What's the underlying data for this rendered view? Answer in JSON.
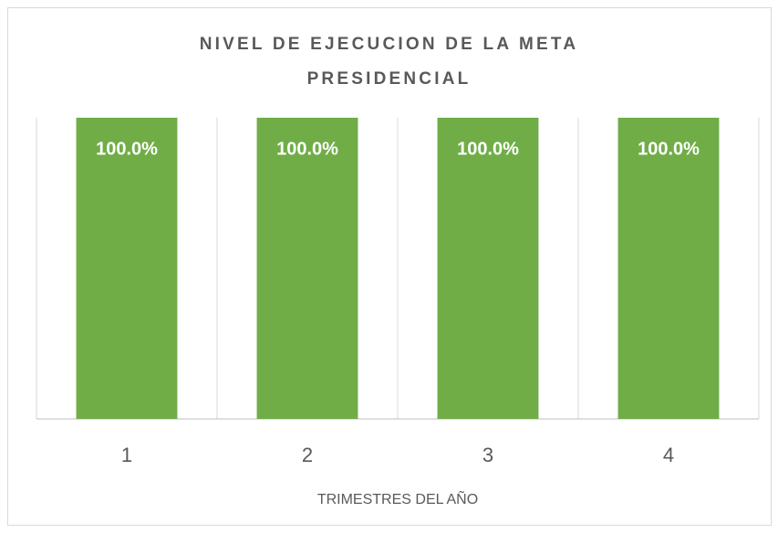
{
  "chart_data": {
    "type": "bar",
    "title": "NIVEL DE EJECUCION DE LA META PRESIDENCIAL",
    "x_label": "TRIMESTRES DEL AÑO",
    "categories": [
      "1",
      "2",
      "3",
      "4"
    ],
    "values": [
      100,
      100,
      100,
      100
    ],
    "value_labels": [
      "100.0%",
      "100.0%",
      "100.0%",
      "100.0%"
    ],
    "color": "#70ad47",
    "ylim": [
      0,
      100
    ]
  }
}
